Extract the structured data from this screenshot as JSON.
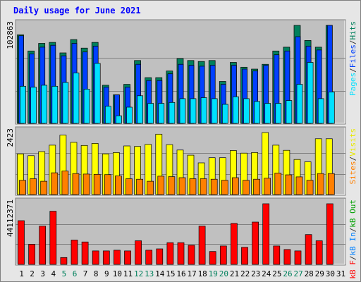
{
  "chart_data": {
    "type": "bar",
    "title": "Daily usage for June 2021",
    "x": [
      "1",
      "2",
      "3",
      "4",
      "5",
      "6",
      "7",
      "8",
      "9",
      "10",
      "11",
      "12",
      "13",
      "14",
      "15",
      "16",
      "17",
      "18",
      "19",
      "20",
      "21",
      "22",
      "23",
      "24",
      "25",
      "26",
      "27",
      "28",
      "29",
      "30",
      "31"
    ],
    "weekend_days": [
      "5",
      "6",
      "12",
      "13",
      "19",
      "20",
      "26",
      "27"
    ],
    "panels": [
      {
        "id": "hits",
        "max_label": "102863",
        "ymax": 102863,
        "series": [
          {
            "name": "Hits",
            "color": "#00805c",
            "values": [
              93000,
              76000,
              84000,
              85000,
              74000,
              88000,
              79000,
              85000,
              40000,
              30000,
              41000,
              66000,
              48000,
              48000,
              55000,
              68000,
              66000,
              65000,
              66000,
              44000,
              64000,
              59000,
              57000,
              62000,
              76000,
              80000,
              104000,
              87000,
              80000,
              103000,
              0
            ]
          },
          {
            "name": "Files",
            "color": "#0040ff",
            "values": [
              92000,
              73000,
              80000,
              82000,
              71000,
              84000,
              75000,
              81000,
              38000,
              30000,
              38000,
              62000,
              45000,
              45000,
              52000,
              62000,
              61000,
              60000,
              61000,
              41000,
              61000,
              57000,
              55000,
              61000,
              72000,
              76000,
              91000,
              81000,
              77000,
              103000,
              0
            ]
          },
          {
            "name": "Pages",
            "color": "#00e0ff",
            "values": [
              39000,
              38000,
              40000,
              39000,
              43000,
              53000,
              36000,
              63000,
              18000,
              8000,
              17000,
              29000,
              21000,
              21000,
              22000,
              26000,
              26000,
              27000,
              26000,
              20000,
              28000,
              26000,
              23000,
              21000,
              21000,
              24000,
              41000,
              64000,
              26000,
              33000,
              0
            ]
          }
        ],
        "axis_labels": [
          {
            "text": "Pages",
            "color": "#00e0ff"
          },
          {
            "text": "/",
            "color": "#333333"
          },
          {
            "text": "Files",
            "color": "#0040ff"
          },
          {
            "text": "/",
            "color": "#333333"
          },
          {
            "text": "Hits",
            "color": "#00805c"
          }
        ]
      },
      {
        "id": "visits",
        "max_label": "2423",
        "ymax": 2423,
        "series": [
          {
            "name": "Visits",
            "color": "#ffff00",
            "values": [
              1590,
              1520,
              1680,
              1930,
              2320,
              2040,
              1920,
              2000,
              1590,
              1640,
              1900,
              1880,
              1960,
              2360,
              1950,
              1740,
              1540,
              1240,
              1440,
              1440,
              1720,
              1620,
              1640,
              2530,
              1930,
              1730,
              1370,
              1280,
              2180,
              2180,
              0
            ]
          },
          {
            "name": "Sites",
            "color": "#ff8000",
            "values": [
              560,
              620,
              520,
              850,
              920,
              820,
              800,
              790,
              780,
              730,
              620,
              600,
              520,
              720,
              700,
              660,
              620,
              620,
              600,
              560,
              660,
              560,
              600,
              640,
              840,
              770,
              690,
              560,
              820,
              820,
              0
            ]
          }
        ],
        "axis_labels": [
          {
            "text": "Sites",
            "color": "#ff8000"
          },
          {
            "text": "/",
            "color": "#333333"
          },
          {
            "text": "Visits",
            "color": "#e8e800"
          }
        ]
      },
      {
        "id": "kbytes",
        "max_label": "44112371",
        "ymax": 44112371,
        "series": [
          {
            "name": "kB F",
            "color": "#ff0000",
            "values": [
              31800000,
              14600000,
              27800000,
              38700000,
              5000000,
              17700000,
              16300000,
              9800000,
              9800000,
              10300000,
              9800000,
              17200000,
              10300000,
              11300000,
              15800000,
              15800000,
              13900000,
              27800000,
              9400000,
              13400000,
              29800000,
              12400000,
              30800000,
              45600000,
              13400000,
              10800000,
              9800000,
              21700000,
              17200000,
              44100000,
              0
            ]
          }
        ],
        "axis_labels": [
          {
            "text": "kB F",
            "color": "#ff0000"
          },
          {
            "text": "/",
            "color": "#333333"
          },
          {
            "text": "kB In",
            "color": "#0080ff"
          },
          {
            "text": "/",
            "color": "#333333"
          },
          {
            "text": "kB Out",
            "color": "#00a000"
          }
        ]
      }
    ],
    "grid": true,
    "legend": "right"
  },
  "colors": {
    "background": "#e6e6e6",
    "plot_background": "#c0c0c0",
    "title": "#0000ff",
    "gridline": "#808080",
    "weekday_label": "#000000",
    "weekend_label": "#00805c"
  }
}
